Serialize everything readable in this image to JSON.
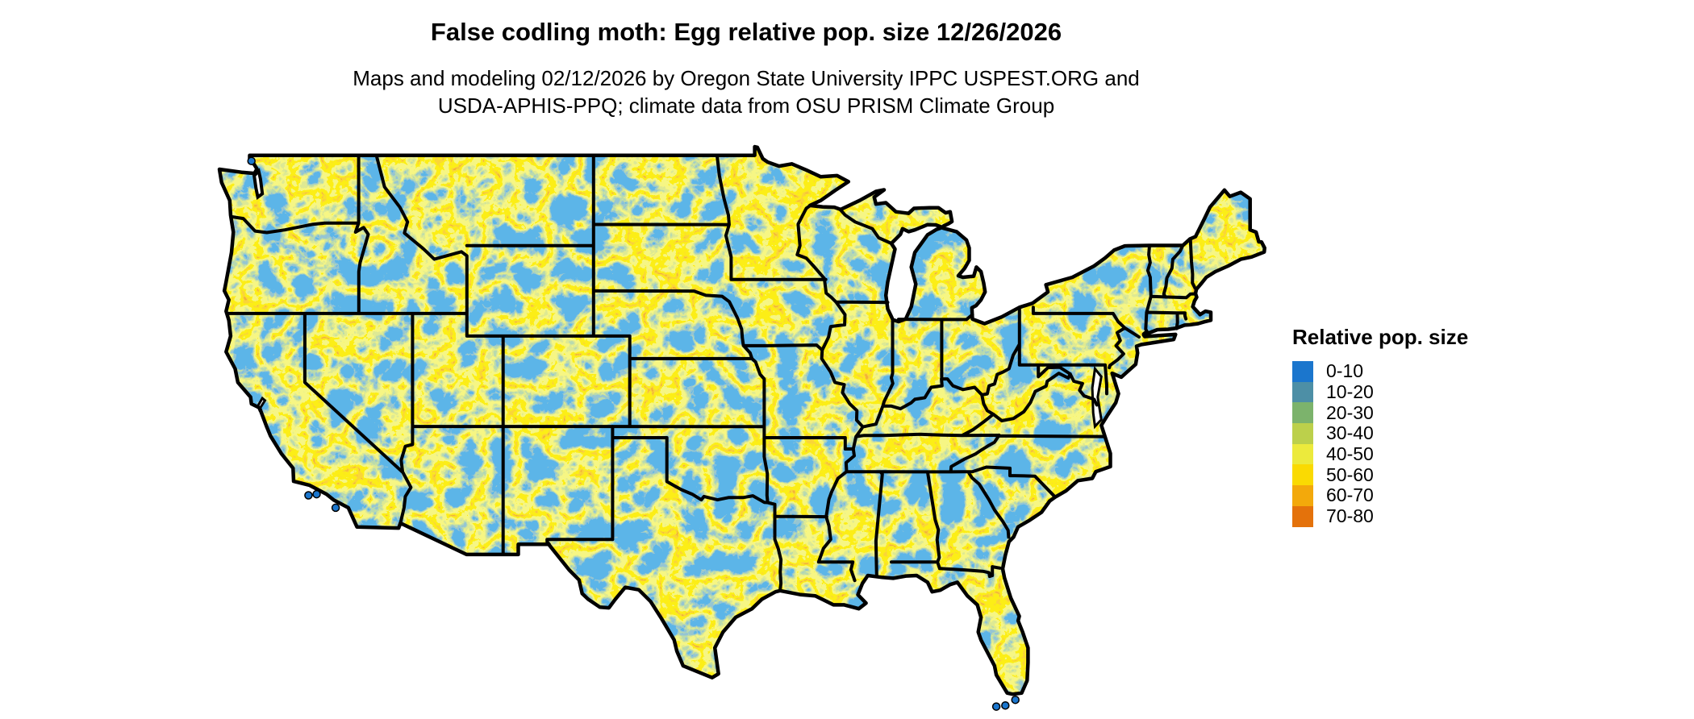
{
  "title": "False codling moth: Egg relative pop. size 12/26/2026",
  "subtitle": {
    "line1": "Maps and modeling 02/12/2026 by Oregon State University IPPC USPEST.ORG and",
    "line2": "USDA-APHIS-PPQ; climate data from OSU PRISM Climate Group"
  },
  "legend": {
    "title": "Relative pop. size",
    "items": [
      {
        "label": "0-10",
        "color": "#1b76cd"
      },
      {
        "label": "10-20",
        "color": "#4d8fa6"
      },
      {
        "label": "20-30",
        "color": "#7cb36c"
      },
      {
        "label": "30-40",
        "color": "#bcd04b"
      },
      {
        "label": "40-50",
        "color": "#ecea3c"
      },
      {
        "label": "50-60",
        "color": "#fada02"
      },
      {
        "label": "60-70",
        "color": "#f3a90b"
      },
      {
        "label": "70-80",
        "color": "#e4720b"
      }
    ]
  },
  "map": {
    "region": "Contiguous United States",
    "variable": "Egg relative population size",
    "base_color": "#1b76cd",
    "water_color": "#ffffff",
    "border_color": "#000000"
  }
}
